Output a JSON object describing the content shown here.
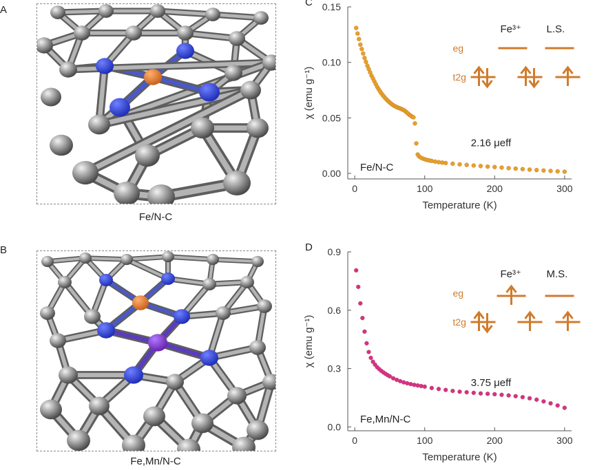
{
  "panels": {
    "A": {
      "letter": "A",
      "caption": "Fe/N-C"
    },
    "B": {
      "letter": "B",
      "caption": "Fe,Mn/N-C"
    }
  },
  "colors": {
    "carbon": "#9a9a9a",
    "nitrogen": "#1f2fb8",
    "iron": "#c9621c",
    "manganese": "#6a24b0",
    "bond": "#8a8a8a"
  },
  "chart_data": [
    {
      "type": "scatter",
      "panel": "C",
      "xlabel": "Temperature (K)",
      "ylabel": "χ (emu g⁻¹)",
      "xlim": [
        -10,
        310
      ],
      "ylim": [
        -0.005,
        0.15
      ],
      "xticks": [
        0,
        100,
        200,
        300
      ],
      "yticks": [
        0.0,
        0.05,
        0.1,
        0.15
      ],
      "ytick_labels": [
        "0.00",
        "0.05",
        "0.10",
        "0.15"
      ],
      "marker_color": "#e8a02a",
      "sample_label": "Fe/N-C",
      "moment_label": "2.16  μeff",
      "inset": {
        "ion": "Fe³⁺",
        "state": "L.S.",
        "eg": "eg",
        "t2g": "t2g"
      },
      "series": [
        {
          "x": [
            2,
            4,
            6,
            8,
            10,
            12,
            14,
            16,
            18,
            20,
            22,
            24,
            26,
            28,
            30,
            32,
            34,
            36,
            38,
            40,
            42,
            44,
            46,
            48,
            50,
            52,
            54,
            56,
            58,
            60,
            62,
            64,
            66,
            68,
            70,
            72,
            74,
            76,
            78,
            80,
            82,
            84,
            86,
            88,
            90,
            92,
            95,
            98,
            101,
            104,
            107,
            110,
            115,
            120,
            125,
            130,
            140,
            150,
            160,
            170,
            180,
            190,
            200,
            210,
            220,
            230,
            240,
            250,
            260,
            270,
            280,
            290,
            300
          ],
          "y": [
            0.131,
            0.126,
            0.121,
            0.116,
            0.112,
            0.108,
            0.104,
            0.1005,
            0.097,
            0.094,
            0.091,
            0.088,
            0.0855,
            0.083,
            0.0805,
            0.078,
            0.076,
            0.074,
            0.0722,
            0.0705,
            0.069,
            0.0675,
            0.0662,
            0.065,
            0.0638,
            0.0628,
            0.0618,
            0.061,
            0.0603,
            0.0597,
            0.0592,
            0.0587,
            0.0582,
            0.0576,
            0.057,
            0.0562,
            0.055,
            0.054,
            0.0528,
            0.052,
            0.051,
            0.0505,
            0.045,
            0.027,
            0.017,
            0.0152,
            0.014,
            0.0132,
            0.0125,
            0.012,
            0.0116,
            0.0112,
            0.0106,
            0.0101,
            0.0097,
            0.0093,
            0.0087,
            0.0081,
            0.0076,
            0.0071,
            0.0066,
            0.0061,
            0.0057,
            0.0052,
            0.0047,
            0.0043,
            0.0038,
            0.0034,
            0.003,
            0.0026,
            0.0022,
            0.0018,
            0.0015
          ]
        }
      ]
    },
    {
      "type": "scatter",
      "panel": "D",
      "xlabel": "Temperature (K)",
      "ylabel": "χ (emu g⁻¹)",
      "xlim": [
        -10,
        310
      ],
      "ylim": [
        -0.02,
        0.9
      ],
      "xticks": [
        0,
        100,
        200,
        300
      ],
      "yticks": [
        0.0,
        0.3,
        0.6,
        0.9
      ],
      "ytick_labels": [
        "0.0",
        "0.3",
        "0.6",
        "0.9"
      ],
      "marker_color": "#d62f8f",
      "sample_label": "Fe,Mn/N-C",
      "moment_label": "3.75  μeff",
      "inset": {
        "ion": "Fe³⁺",
        "state": "M.S.",
        "eg": "eg",
        "t2g": "t2g"
      },
      "series": [
        {
          "x": [
            2,
            5,
            8,
            11,
            14,
            17,
            20,
            23,
            26,
            29,
            32,
            35,
            38,
            41,
            44,
            47,
            50,
            55,
            60,
            65,
            70,
            75,
            80,
            85,
            90,
            95,
            100,
            110,
            120,
            130,
            140,
            150,
            160,
            170,
            180,
            190,
            200,
            210,
            220,
            230,
            240,
            250,
            260,
            270,
            280,
            290,
            300
          ],
          "y": [
            0.805,
            0.72,
            0.635,
            0.56,
            0.49,
            0.43,
            0.385,
            0.355,
            0.335,
            0.32,
            0.307,
            0.297,
            0.288,
            0.28,
            0.273,
            0.266,
            0.26,
            0.25,
            0.242,
            0.235,
            0.229,
            0.224,
            0.22,
            0.216,
            0.213,
            0.21,
            0.207,
            0.2,
            0.195,
            0.19,
            0.185,
            0.181,
            0.178,
            0.175,
            0.172,
            0.17,
            0.168,
            0.165,
            0.162,
            0.158,
            0.153,
            0.147,
            0.14,
            0.131,
            0.121,
            0.11,
            0.098
          ]
        }
      ]
    }
  ]
}
